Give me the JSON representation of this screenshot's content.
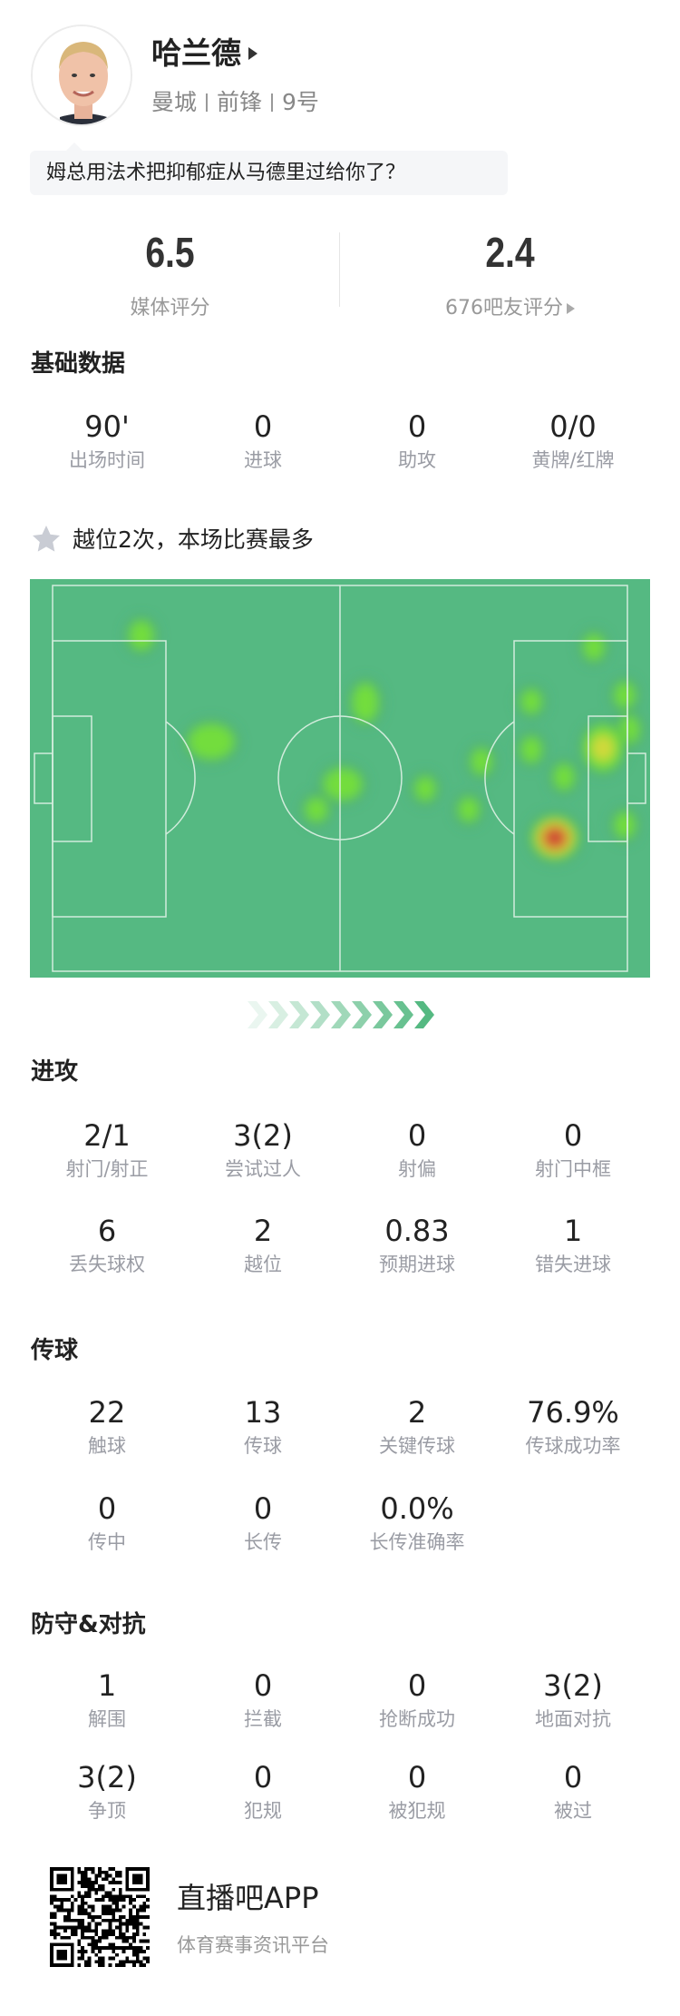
{
  "player": {
    "name": "哈兰德",
    "team": "曼城",
    "position": "前锋",
    "number": "9号",
    "comment": "姆总用法术把抑郁症从马德里过给你了？"
  },
  "ratings": {
    "media": {
      "value": "6.5",
      "label": "媒体评分"
    },
    "fans": {
      "value": "2.4",
      "label": "676吧友评分"
    }
  },
  "basic": {
    "title": "基础数据",
    "stats": [
      {
        "value": "90'",
        "label": "出场时间"
      },
      {
        "value": "0",
        "label": "进球"
      },
      {
        "value": "0",
        "label": "助攻"
      },
      {
        "value": "0/0",
        "label": "黄牌/红牌"
      }
    ]
  },
  "highlight": {
    "icon": "star-icon",
    "text": "越位2次，本场比赛最多"
  },
  "heatmap": {
    "pitch_color": "#55b982",
    "attack_direction": "right"
  },
  "attack": {
    "title": "进攻",
    "stats": [
      {
        "value": "2/1",
        "label": "射门/射正"
      },
      {
        "value": "3(2)",
        "label": "尝试过人"
      },
      {
        "value": "0",
        "label": "射偏"
      },
      {
        "value": "0",
        "label": "射门中框"
      },
      {
        "value": "6",
        "label": "丢失球权"
      },
      {
        "value": "2",
        "label": "越位"
      },
      {
        "value": "0.83",
        "label": "预期进球"
      },
      {
        "value": "1",
        "label": "错失进球"
      }
    ]
  },
  "passing": {
    "title": "传球",
    "stats": [
      {
        "value": "22",
        "label": "触球"
      },
      {
        "value": "13",
        "label": "传球"
      },
      {
        "value": "2",
        "label": "关键传球"
      },
      {
        "value": "76.9%",
        "label": "传球成功率"
      },
      {
        "value": "0",
        "label": "传中"
      },
      {
        "value": "0",
        "label": "长传"
      },
      {
        "value": "0.0%",
        "label": "长传准确率"
      }
    ]
  },
  "defense": {
    "title": "防守&对抗",
    "stats": [
      {
        "value": "1",
        "label": "解围"
      },
      {
        "value": "0",
        "label": "拦截"
      },
      {
        "value": "0",
        "label": "抢断成功"
      },
      {
        "value": "3(2)",
        "label": "地面对抗"
      },
      {
        "value": "3(2)",
        "label": "争顶"
      },
      {
        "value": "0",
        "label": "犯规"
      },
      {
        "value": "0",
        "label": "被犯规"
      },
      {
        "value": "0",
        "label": "被过"
      }
    ]
  },
  "footer": {
    "app_name": "直播吧APP",
    "tagline": "体育赛事资讯平台"
  }
}
